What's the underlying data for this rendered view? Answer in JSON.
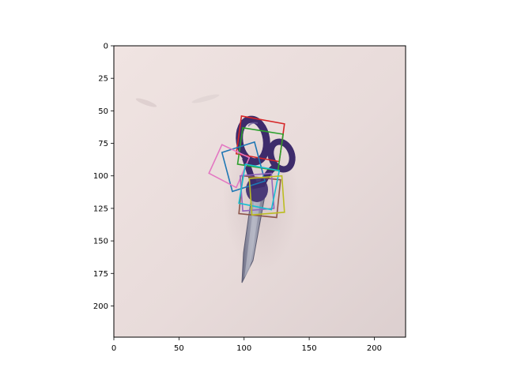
{
  "chart_data": {
    "type": "image",
    "subject": "scissors",
    "xlim": [
      0,
      224
    ],
    "ylim": [
      224,
      0
    ],
    "y_inverted": true,
    "x_ticks": [
      0,
      50,
      100,
      150,
      200
    ],
    "y_ticks": [
      0,
      25,
      50,
      75,
      100,
      125,
      150,
      175,
      200
    ],
    "grid": false,
    "colors": {
      "background": "#e8dcdc",
      "scissors_handle": "#3d2b6b",
      "scissors_blade": "#8a8da0"
    },
    "boxes": [
      {
        "color": "#d62728",
        "corners": [
          [
            98,
            54
          ],
          [
            131,
            60
          ],
          [
            127,
            89
          ],
          [
            94,
            83
          ]
        ]
      },
      {
        "color": "#2ca02c",
        "corners": [
          [
            99,
            63
          ],
          [
            130,
            68
          ],
          [
            126,
            96
          ],
          [
            95,
            91
          ]
        ]
      },
      {
        "color": "#1f77b4",
        "corners": [
          [
            83,
            82
          ],
          [
            108,
            74
          ],
          [
            116,
            104
          ],
          [
            91,
            112
          ]
        ]
      },
      {
        "color": "#e377c2",
        "corners": [
          [
            83,
            76
          ],
          [
            104,
            86
          ],
          [
            94,
            109
          ],
          [
            73,
            98
          ]
        ]
      },
      {
        "color": "#8c564b",
        "corners": [
          [
            99,
            100
          ],
          [
            128,
            103
          ],
          [
            125,
            132
          ],
          [
            96,
            129
          ]
        ]
      },
      {
        "color": "#9467bd",
        "corners": [
          [
            97,
            100
          ],
          [
            121,
            98
          ],
          [
            123,
            125
          ],
          [
            99,
            127
          ]
        ]
      },
      {
        "color": "#17becf",
        "corners": [
          [
            101,
            91
          ],
          [
            127,
            96
          ],
          [
            121,
            126
          ],
          [
            96,
            121
          ]
        ]
      },
      {
        "color": "#bcbd22",
        "corners": [
          [
            104,
            102
          ],
          [
            129,
            100
          ],
          [
            131,
            128
          ],
          [
            106,
            130
          ]
        ]
      }
    ]
  }
}
